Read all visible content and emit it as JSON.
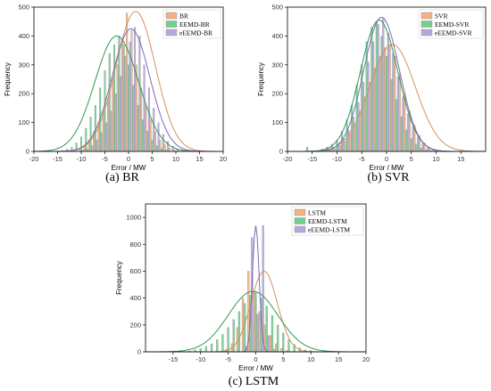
{
  "colors": {
    "series1": "#f4b183",
    "series2": "#70d090",
    "series3": "#b8a6e0",
    "curve1": "#d8905a",
    "curve2": "#2f9a52",
    "curve3": "#7e6bb8",
    "axis": "#000000"
  },
  "chart_data": [
    {
      "type": "bar",
      "caption": "(a) BR",
      "xlabel": "Error / MW",
      "ylabel": "Frequency",
      "xlim": [
        -20,
        20
      ],
      "ylim": [
        0,
        500
      ],
      "xticks": [
        -20,
        -15,
        -10,
        -5,
        0,
        5,
        10,
        15,
        20
      ],
      "yticks": [
        0,
        100,
        200,
        300,
        400,
        500
      ],
      "legend_position": "top-right",
      "series": [
        {
          "name": "BR",
          "x": [
            -11,
            -10,
            -9,
            -8,
            -7,
            -6,
            -5,
            -4,
            -3,
            -2,
            -1,
            0,
            1,
            2,
            3,
            4,
            5,
            6,
            7,
            8,
            9,
            10,
            11,
            12
          ],
          "values": [
            5,
            10,
            20,
            40,
            70,
            100,
            140,
            180,
            250,
            300,
            390,
            480,
            420,
            300,
            220,
            160,
            110,
            70,
            40,
            25,
            12,
            6,
            3,
            2
          ],
          "curve": {
            "mean": 1.5,
            "sd": 4.2,
            "peak": 485
          }
        },
        {
          "name": "EEMD-BR",
          "x": [
            -14,
            -13,
            -12,
            -11,
            -10,
            -9,
            -8,
            -7,
            -6,
            -5,
            -4,
            -3,
            -2,
            -1,
            0,
            1,
            2,
            3,
            4,
            5,
            6,
            7,
            8
          ],
          "values": [
            3,
            8,
            15,
            30,
            50,
            80,
            120,
            160,
            220,
            280,
            340,
            370,
            400,
            370,
            300,
            230,
            160,
            110,
            70,
            40,
            20,
            10,
            5
          ],
          "curve": {
            "mean": -2.5,
            "sd": 4.6,
            "peak": 400
          }
        },
        {
          "name": "eEEMD-BR",
          "x": [
            -10,
            -9,
            -8,
            -7,
            -6,
            -5,
            -4,
            -3,
            -2,
            -1,
            0,
            1,
            2,
            3,
            4,
            5,
            6,
            7,
            8,
            9,
            10,
            11
          ],
          "values": [
            5,
            10,
            20,
            40,
            65,
            100,
            140,
            200,
            260,
            330,
            380,
            430,
            400,
            300,
            220,
            150,
            100,
            60,
            35,
            18,
            8,
            3
          ],
          "curve": {
            "mean": 0.5,
            "sd": 4.0,
            "peak": 425
          }
        }
      ]
    },
    {
      "type": "bar",
      "caption": "(b) SVR",
      "xlabel": "Error / MW",
      "ylabel": "Frequency",
      "xlim": [
        -20,
        20
      ],
      "ylim": [
        0,
        500
      ],
      "xticks": [
        -20,
        -15,
        -10,
        -5,
        0,
        5,
        10,
        15
      ],
      "yticks": [
        0,
        100,
        200,
        300,
        400,
        500
      ],
      "legend_position": "top-right",
      "series": [
        {
          "name": "SVR",
          "x": [
            -11,
            -10,
            -9,
            -8,
            -7,
            -6,
            -5,
            -4,
            -3,
            -2,
            -1,
            0,
            1,
            2,
            3,
            4,
            5,
            6,
            7,
            8,
            9,
            10,
            11,
            12
          ],
          "values": [
            5,
            10,
            20,
            35,
            60,
            95,
            140,
            190,
            240,
            290,
            330,
            360,
            370,
            330,
            270,
            200,
            140,
            90,
            55,
            30,
            15,
            8,
            4,
            2
          ],
          "curve": {
            "mean": 1.2,
            "sd": 4.6,
            "peak": 370
          }
        },
        {
          "name": "EEMD-SVR",
          "x": [
            -16,
            -13,
            -12,
            -11,
            -10,
            -9,
            -8,
            -7,
            -6,
            -5,
            -4,
            -3,
            -2,
            -1,
            0,
            1,
            2,
            3,
            4,
            5,
            6,
            7,
            8,
            9,
            10
          ],
          "values": [
            15,
            8,
            15,
            25,
            40,
            70,
            110,
            160,
            230,
            300,
            380,
            430,
            450,
            400,
            330,
            250,
            180,
            120,
            75,
            45,
            25,
            12,
            6,
            3,
            2
          ],
          "curve": {
            "mean": -1.5,
            "sd": 3.8,
            "peak": 455
          }
        },
        {
          "name": "eEEMD-SVR",
          "x": [
            -12,
            -11,
            -10,
            -9,
            -8,
            -7,
            -6,
            -5,
            -4,
            -3,
            -2,
            -1,
            0,
            1,
            2,
            3,
            4,
            5,
            6,
            7,
            8,
            9,
            10
          ],
          "values": [
            8,
            15,
            25,
            45,
            75,
            120,
            170,
            240,
            310,
            380,
            440,
            460,
            410,
            340,
            260,
            190,
            130,
            85,
            50,
            28,
            14,
            7,
            3
          ],
          "curve": {
            "mean": -1.0,
            "sd": 3.6,
            "peak": 465
          }
        }
      ]
    },
    {
      "type": "bar",
      "caption": "(c) LSTM",
      "xlabel": "Error / MW",
      "ylabel": "Frequency",
      "xlim": [
        -20,
        20
      ],
      "ylim": [
        0,
        1100
      ],
      "xticks": [
        -15,
        -10,
        -5,
        0,
        5,
        10,
        15,
        20
      ],
      "yticks": [
        0,
        200,
        400,
        600,
        800,
        1000
      ],
      "legend_position": "top-right",
      "series": [
        {
          "name": "LSTM",
          "x": [
            -5,
            -4,
            -3,
            -2,
            -1,
            0,
            1,
            2,
            3,
            4,
            5,
            6
          ],
          "values": [
            20,
            60,
            180,
            400,
            600,
            440,
            300,
            200,
            120,
            60,
            25,
            10
          ],
          "curve": {
            "mean": 1.5,
            "sd": 2.4,
            "peak": 600
          }
        },
        {
          "name": "EEMD-LSTM",
          "x": [
            -12,
            -11,
            -10,
            -9,
            -8,
            -7,
            -6,
            -5,
            -4,
            -3,
            -2,
            -1,
            0,
            1,
            2,
            3,
            4,
            5,
            6,
            7,
            8,
            9,
            10,
            11
          ],
          "values": [
            5,
            15,
            25,
            40,
            60,
            90,
            130,
            180,
            240,
            300,
            360,
            420,
            440,
            400,
            340,
            270,
            200,
            140,
            90,
            55,
            30,
            15,
            8,
            3
          ],
          "curve": {
            "mean": -0.5,
            "sd": 4.5,
            "peak": 450
          }
        },
        {
          "name": "eEEMD-LSTM",
          "x": [
            -2,
            -1,
            0,
            1,
            2,
            3
          ],
          "values": [
            40,
            850,
            280,
            940,
            120,
            20
          ],
          "curve": {
            "mean": 0.0,
            "sd": 0.6,
            "peak": 940
          }
        }
      ]
    }
  ]
}
